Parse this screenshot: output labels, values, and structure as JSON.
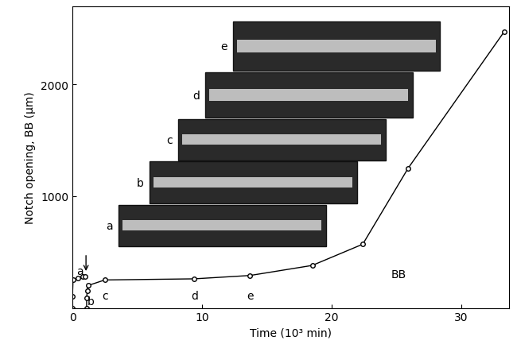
{
  "chart_data": {
    "type": "line",
    "xlabel": "Time (10³ min)",
    "ylabel": "Notch opening, BB (µm)",
    "xlim": [
      0,
      33.7
    ],
    "xticks": [
      0,
      10,
      20,
      30
    ],
    "ylim": [
      0,
      2700
    ],
    "yticks": [
      1000,
      2000
    ],
    "grid": false,
    "series": [
      {
        "color": "#000000",
        "marker": "o",
        "line_style": "solid",
        "x": [
          0,
          0,
          0.05,
          0.4,
          0.8,
          1.0
        ],
        "values": [
          0,
          100,
          250,
          270,
          280,
          280
        ]
      },
      {
        "color": "#000000",
        "marker": "o",
        "line_style": "solid",
        "x": [
          1.1,
          1.1,
          1.15,
          1.2,
          2.5,
          9.4,
          13.7,
          18.5,
          22.4,
          25.9,
          33.3
        ],
        "values": [
          0,
          90,
          150,
          200,
          250,
          260,
          290,
          380,
          570,
          1250,
          2470
        ]
      }
    ],
    "annotations": [
      {
        "text": "a",
        "x": 0.6,
        "y": 330
      },
      {
        "text": "b",
        "x": 1.4,
        "y": 60
      },
      {
        "text": "c",
        "x": 2.5,
        "y": 110
      },
      {
        "text": "d",
        "x": 9.4,
        "y": 110
      },
      {
        "text": "e",
        "x": 13.7,
        "y": 110
      },
      {
        "text": "BB",
        "x": 25.2,
        "y": 300
      }
    ],
    "arrow": {
      "x": 1.05,
      "y": 310
    },
    "panels": [
      "a",
      "b",
      "c",
      "d",
      "e"
    ]
  }
}
